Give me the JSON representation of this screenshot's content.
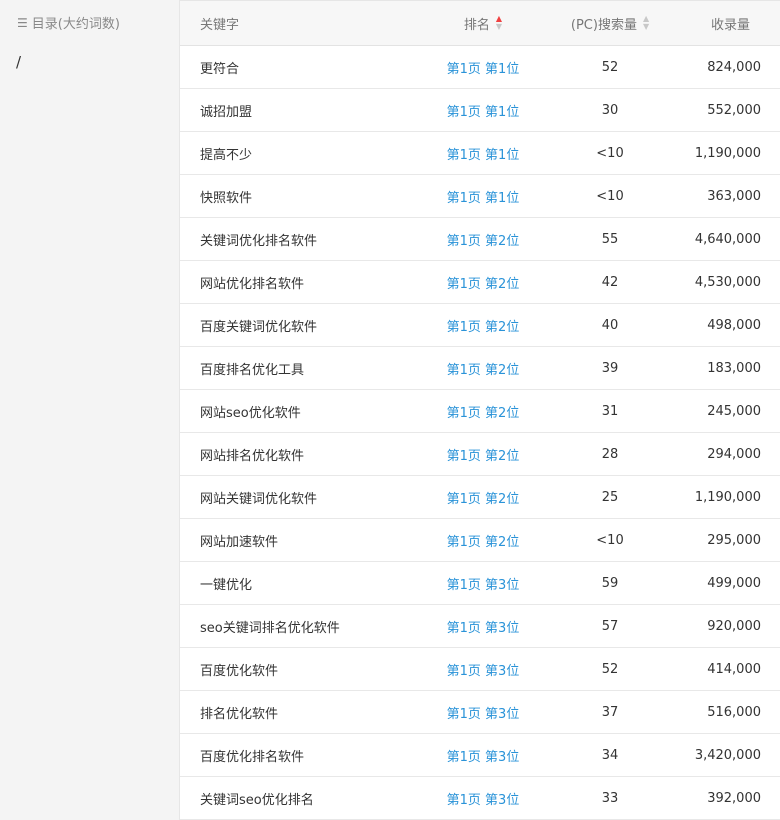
{
  "sidebar": {
    "title": "目录(大约词数)",
    "path": "/"
  },
  "table": {
    "headers": {
      "keyword": "关键字",
      "rank": "排名",
      "search": "(PC)搜索量",
      "indexed": "收录量"
    },
    "sort": {
      "rank": "asc",
      "search": "none"
    },
    "colors": {
      "rank_link": "#2a93d8",
      "sort_active": "#f04040",
      "sort_inactive": "#c8c8c8"
    },
    "rows": [
      {
        "keyword": "更符合",
        "rank": "第1页 第1位",
        "search": "52",
        "indexed": "824,000"
      },
      {
        "keyword": "诚招加盟",
        "rank": "第1页 第1位",
        "search": "30",
        "indexed": "552,000"
      },
      {
        "keyword": "提高不少",
        "rank": "第1页 第1位",
        "search": "<10",
        "indexed": "1,190,000"
      },
      {
        "keyword": "快照软件",
        "rank": "第1页 第1位",
        "search": "<10",
        "indexed": "363,000"
      },
      {
        "keyword": "关键词优化排名软件",
        "rank": "第1页 第2位",
        "search": "55",
        "indexed": "4,640,000"
      },
      {
        "keyword": "网站优化排名软件",
        "rank": "第1页 第2位",
        "search": "42",
        "indexed": "4,530,000"
      },
      {
        "keyword": "百度关键词优化软件",
        "rank": "第1页 第2位",
        "search": "40",
        "indexed": "498,000"
      },
      {
        "keyword": "百度排名优化工具",
        "rank": "第1页 第2位",
        "search": "39",
        "indexed": "183,000"
      },
      {
        "keyword": "网站seo优化软件",
        "rank": "第1页 第2位",
        "search": "31",
        "indexed": "245,000"
      },
      {
        "keyword": "网站排名优化软件",
        "rank": "第1页 第2位",
        "search": "28",
        "indexed": "294,000"
      },
      {
        "keyword": "网站关键词优化软件",
        "rank": "第1页 第2位",
        "search": "25",
        "indexed": "1,190,000"
      },
      {
        "keyword": "网站加速软件",
        "rank": "第1页 第2位",
        "search": "<10",
        "indexed": "295,000"
      },
      {
        "keyword": "一键优化",
        "rank": "第1页 第3位",
        "search": "59",
        "indexed": "499,000"
      },
      {
        "keyword": "seo关键词排名优化软件",
        "rank": "第1页 第3位",
        "search": "57",
        "indexed": "920,000"
      },
      {
        "keyword": "百度优化软件",
        "rank": "第1页 第3位",
        "search": "52",
        "indexed": "414,000"
      },
      {
        "keyword": "排名优化软件",
        "rank": "第1页 第3位",
        "search": "37",
        "indexed": "516,000"
      },
      {
        "keyword": "百度优化排名软件",
        "rank": "第1页 第3位",
        "search": "34",
        "indexed": "3,420,000"
      },
      {
        "keyword": "关键词seo优化排名",
        "rank": "第1页 第3位",
        "search": "33",
        "indexed": "392,000"
      }
    ]
  }
}
